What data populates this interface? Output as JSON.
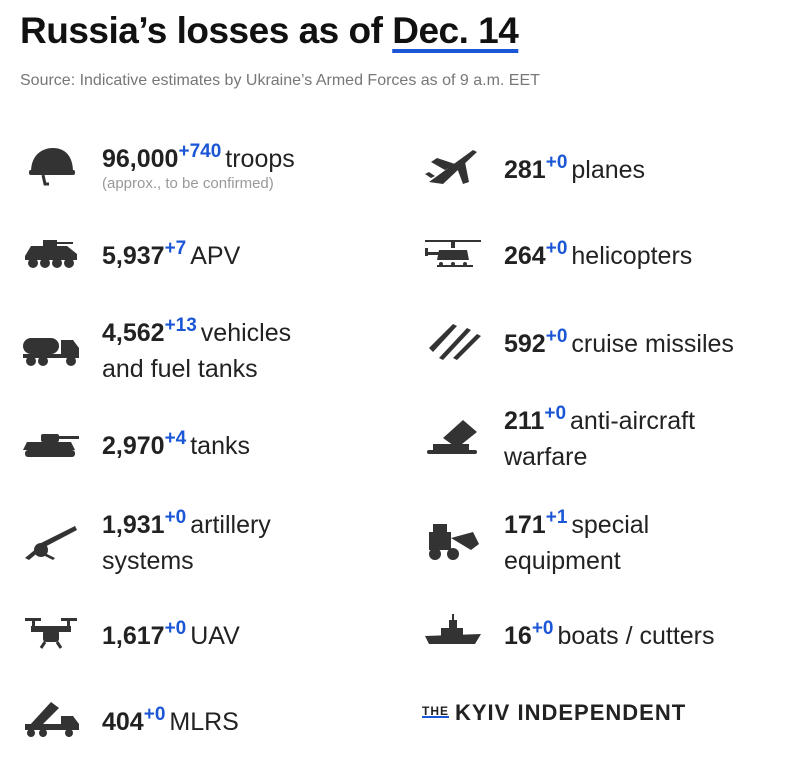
{
  "header": {
    "title_prefix": "Russia’s losses as of",
    "title_date": "Dec. 14",
    "source": "Source: Indicative estimates by Ukraine’s Armed Forces as of 9 a.m. EET"
  },
  "left_items": [
    {
      "value": "96,000",
      "delta": "+740",
      "label": "troops",
      "label2": "",
      "note": "(approx., to be confirmed)",
      "icon": "helmet-icon"
    },
    {
      "value": "5,937",
      "delta": "+7",
      "label": "APV",
      "label2": "",
      "note": "",
      "icon": "apv-icon"
    },
    {
      "value": "4,562",
      "delta": "+13",
      "label": "vehicles",
      "label2": "and fuel tanks",
      "note": "",
      "icon": "fuel-truck-icon"
    },
    {
      "value": "2,970",
      "delta": "+4",
      "label": "tanks",
      "label2": "",
      "note": "",
      "icon": "tank-icon"
    },
    {
      "value": "1,931",
      "delta": "+0",
      "label": "artillery",
      "label2": "systems",
      "note": "",
      "icon": "artillery-icon"
    },
    {
      "value": "1,617",
      "delta": "+0",
      "label": "UAV",
      "label2": "",
      "note": "",
      "icon": "drone-icon"
    },
    {
      "value": "404",
      "delta": "+0",
      "label": "MLRS",
      "label2": "",
      "note": "",
      "icon": "mlrs-icon"
    }
  ],
  "right_items": [
    {
      "value": "281",
      "delta": "+0",
      "label": "planes",
      "label2": "",
      "icon": "jet-icon"
    },
    {
      "value": "264",
      "delta": "+0",
      "label": "helicopters",
      "label2": "",
      "icon": "helicopter-icon"
    },
    {
      "value": "592",
      "delta": "+0",
      "label": "cruise missiles",
      "label2": "",
      "icon": "missiles-icon"
    },
    {
      "value": "211",
      "delta": "+0",
      "label": "anti-aircraft",
      "label2": "warfare",
      "icon": "anti-aircraft-icon"
    },
    {
      "value": "171",
      "delta": "+1",
      "label": "special",
      "label2": "equipment",
      "icon": "special-equipment-icon"
    },
    {
      "value": "16",
      "delta": "+0",
      "label": "boats / cutters",
      "label2": "",
      "icon": "boat-icon"
    }
  ],
  "brand": {
    "the": "THE",
    "name": "KYIV INDEPENDENT"
  },
  "colors": {
    "accent": "#1a56d6",
    "text": "#222222",
    "muted": "#777777",
    "icon": "#333333"
  }
}
